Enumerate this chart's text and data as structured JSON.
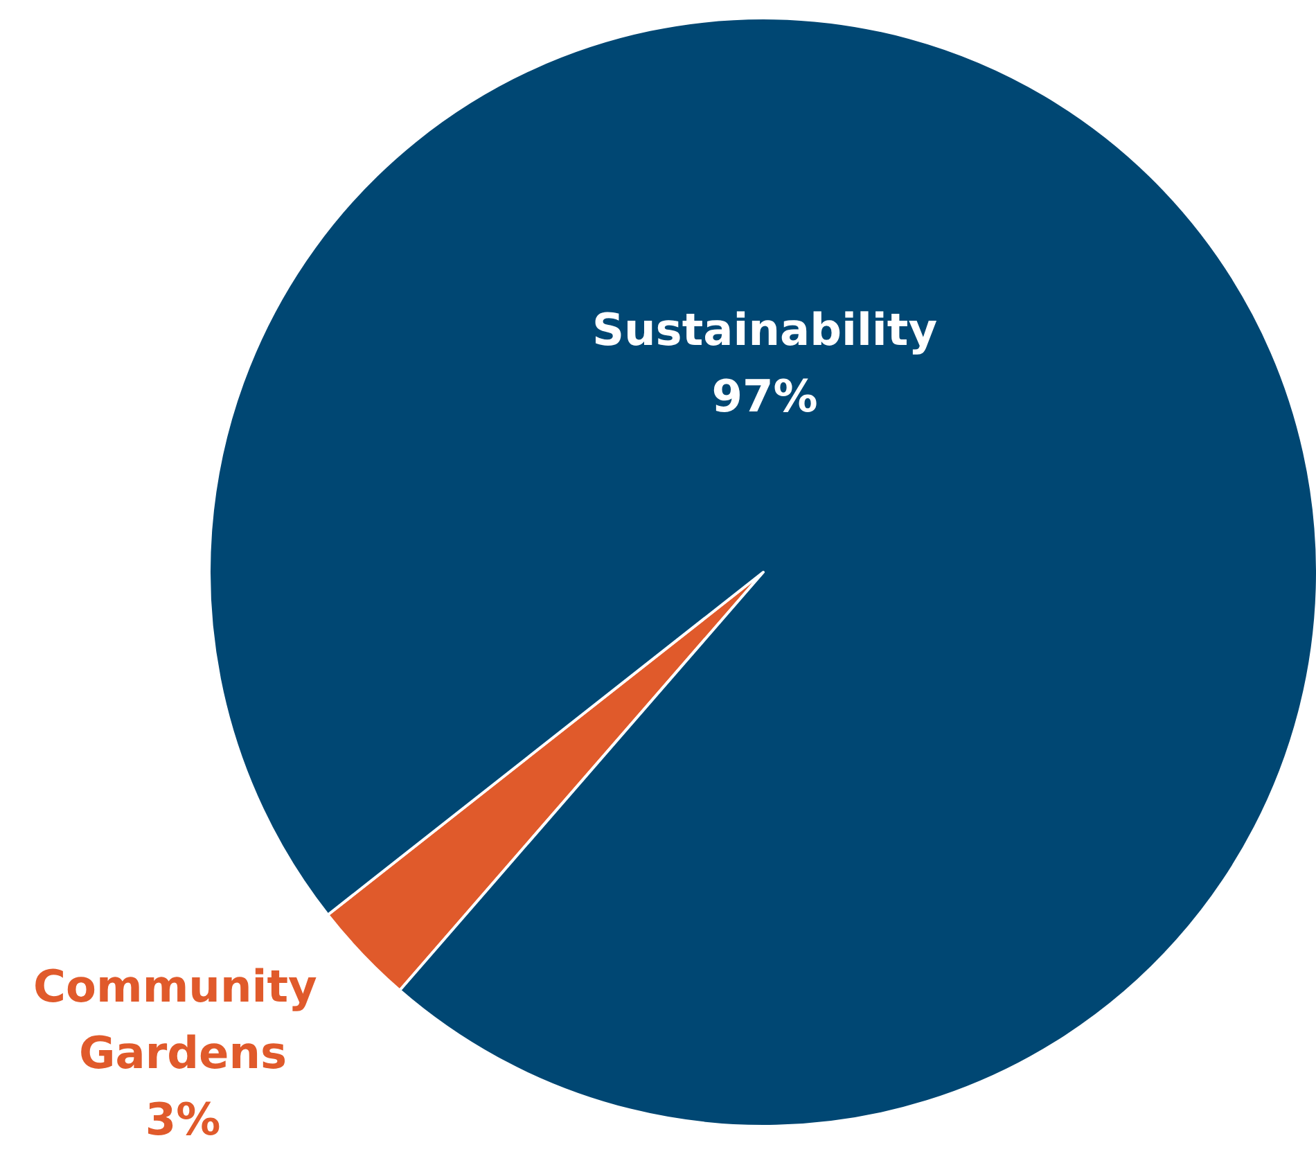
{
  "chart_data": {
    "type": "pie",
    "categories": [
      "Community Gardens",
      "Sustainability"
    ],
    "values": [
      3,
      97
    ],
    "value_labels": [
      "3%",
      "97%"
    ],
    "colors": [
      "#e05a2b",
      "#004773"
    ]
  }
}
